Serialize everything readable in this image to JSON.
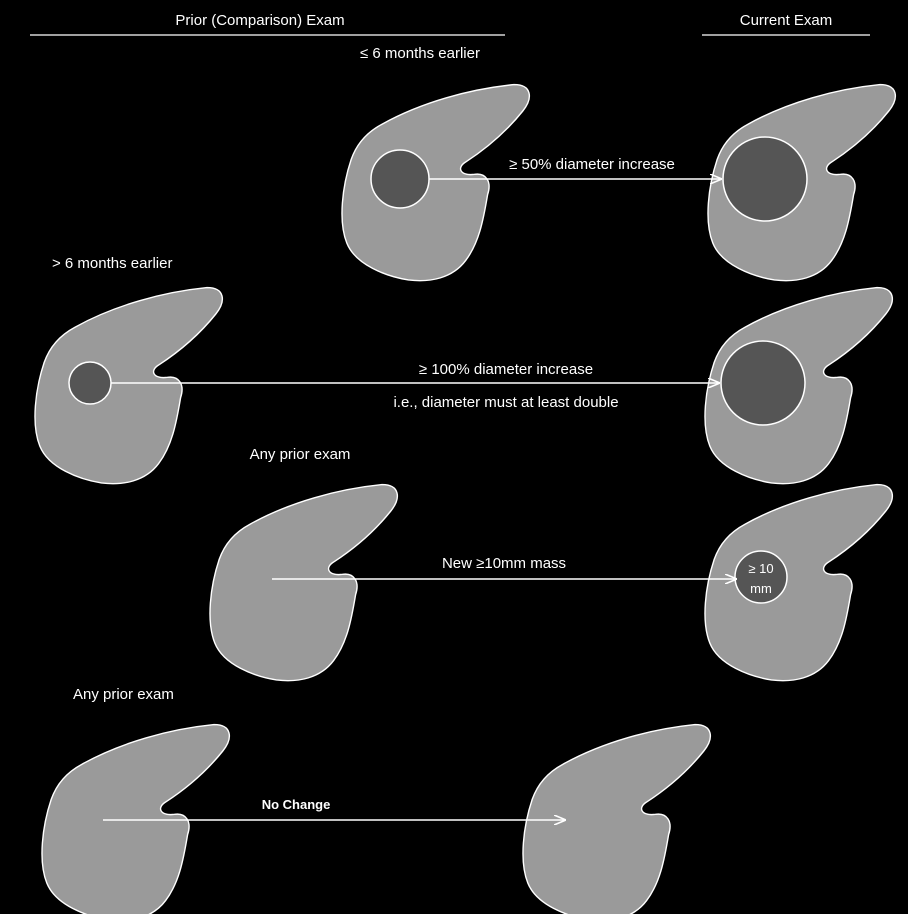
{
  "headers": {
    "prior": "Prior (Comparison) Exam",
    "current": "Current Exam"
  },
  "rows": [
    {
      "time_label": "≤ 6 months earlier",
      "criterion": "≥ 50% diameter increase",
      "criterion_note": ""
    },
    {
      "time_label": "> 6 months earlier",
      "criterion": "≥ 100% diameter increase",
      "criterion_note": "i.e., diameter must at least double"
    },
    {
      "time_label": "Any prior exam",
      "criterion": "New ≥10mm mass",
      "lesion_label_line1": "≥ 10",
      "lesion_label_line2": "mm"
    },
    {
      "time_label": "Any prior exam",
      "criterion": "No Change"
    }
  ],
  "colors": {
    "background": "#000000",
    "organ": "#9a9a9a",
    "lesion": "#555555",
    "stroke": "#ffffff"
  }
}
